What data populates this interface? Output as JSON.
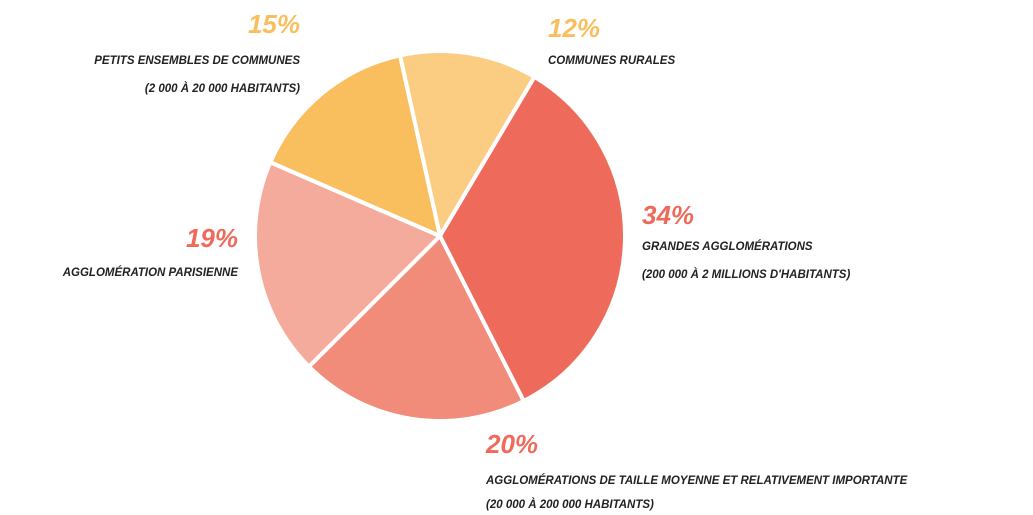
{
  "chart_data": {
    "type": "pie",
    "categories": [
      [
        "COMMUNES RURALES"
      ],
      [
        "GRANDES AGGLOMÉRATIONS",
        "(200 000 À 2 MILLIONS D'HABITANTS)"
      ],
      [
        "AGGLOMÉRATIONS DE TAILLE MOYENNE ET RELATIVEMENT IMPORTANTE",
        "(20 000 À 200 000 HABITANTS)"
      ],
      [
        "AGGLOMÉRATION PARISIENNE"
      ],
      [
        "PETITS ENSEMBLES DE COMMUNES",
        "(2 000 À 20 000 HABITANTS)"
      ]
    ],
    "values": [
      12,
      34,
      20,
      19,
      15
    ],
    "value_labels": [
      "12%",
      "34%",
      "20%",
      "19%",
      "15%"
    ],
    "colors": [
      "#fbcd82",
      "#ee6a5a",
      "#f28c7a",
      "#f5ab9c",
      "#f9bf5f"
    ],
    "value_label_colors": [
      "#f9bf5f",
      "#ee6a5a",
      "#ee6a5a",
      "#ee6a5a",
      "#f9bf5f"
    ]
  }
}
